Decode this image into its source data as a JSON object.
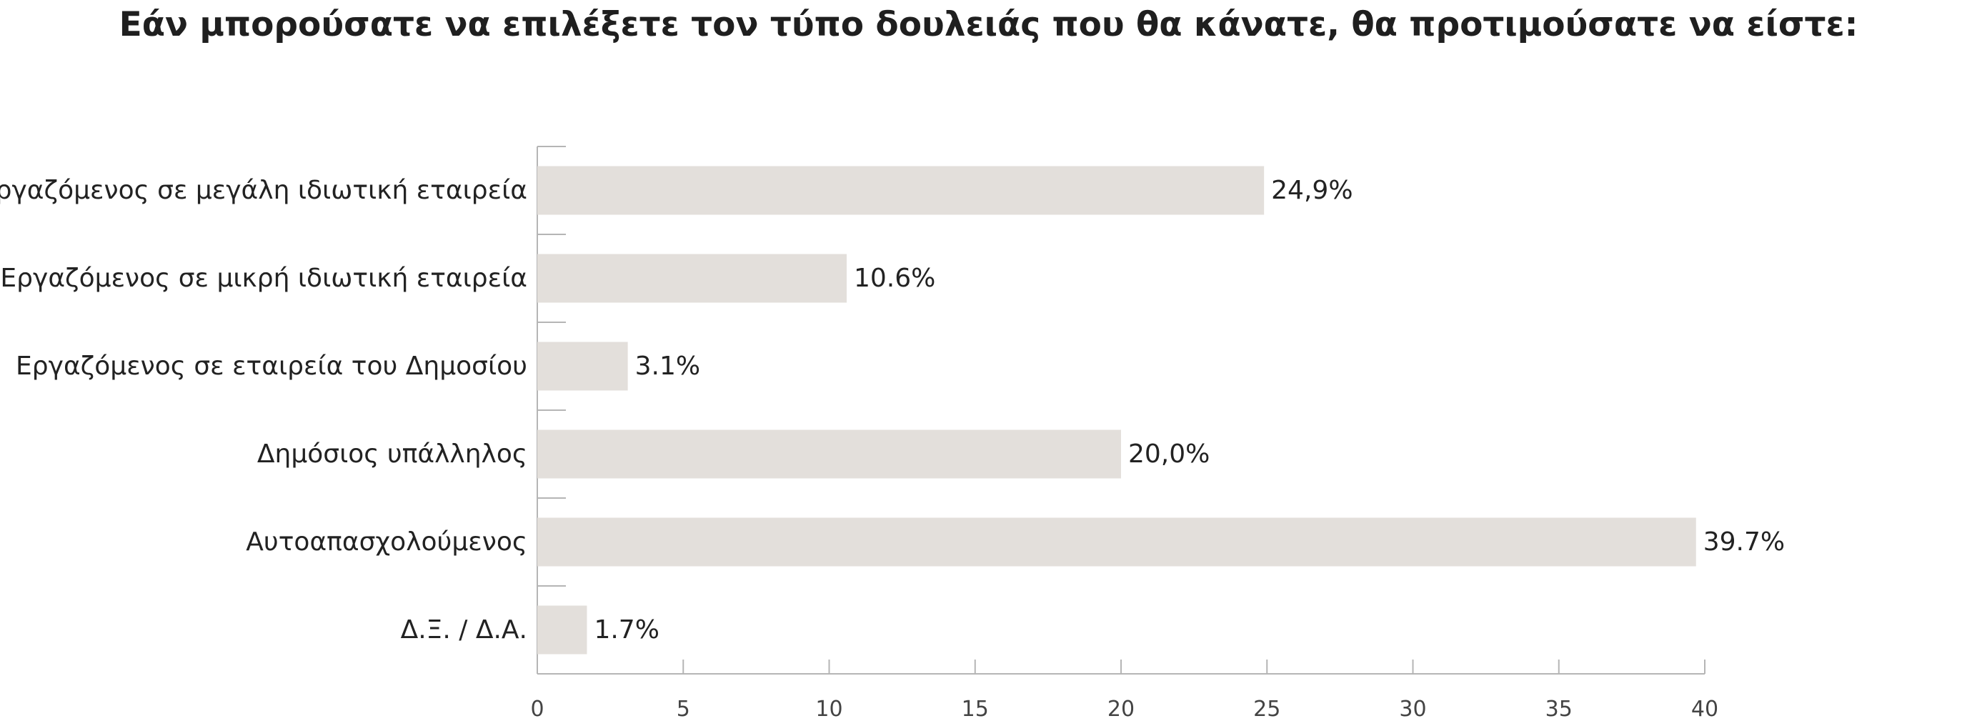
{
  "chart_data": {
    "type": "bar",
    "orientation": "horizontal",
    "title": "Εάν μπορούσατε να επιλέξετε τον τύπο δουλειάς που θα κάνατε, θα προτιμούσατε να είστε:",
    "xlabel": "",
    "ylabel": "",
    "categories": [
      "Εργαζόμενος σε μεγάλη ιδιωτική εταιρεία",
      "Εργαζόμενος σε μικρή ιδιωτική εταιρεία",
      "Εργαζόμενος σε εταιρεία του Δημοσίου",
      "Δημόσιος υπάλληλος",
      "Αυτοαπασχολούμενος",
      "Δ.Ξ. / Δ.Α."
    ],
    "values": [
      24.9,
      10.6,
      3.1,
      20.0,
      39.7,
      1.7
    ],
    "value_labels": [
      "24,9%",
      "10.6%",
      "3.1%",
      "20,0%",
      "39.7%",
      "1.7%"
    ],
    "xlim": [
      0,
      40
    ],
    "xticks": [
      "0",
      "5",
      "10",
      "15",
      "20",
      "25",
      "30",
      "35",
      "40"
    ],
    "grid": false,
    "legend": "none",
    "colors": {
      "bar": "#e3dfdb",
      "axis": "#b5b5b5",
      "text": "#222222",
      "tick_text": "#444444"
    }
  }
}
